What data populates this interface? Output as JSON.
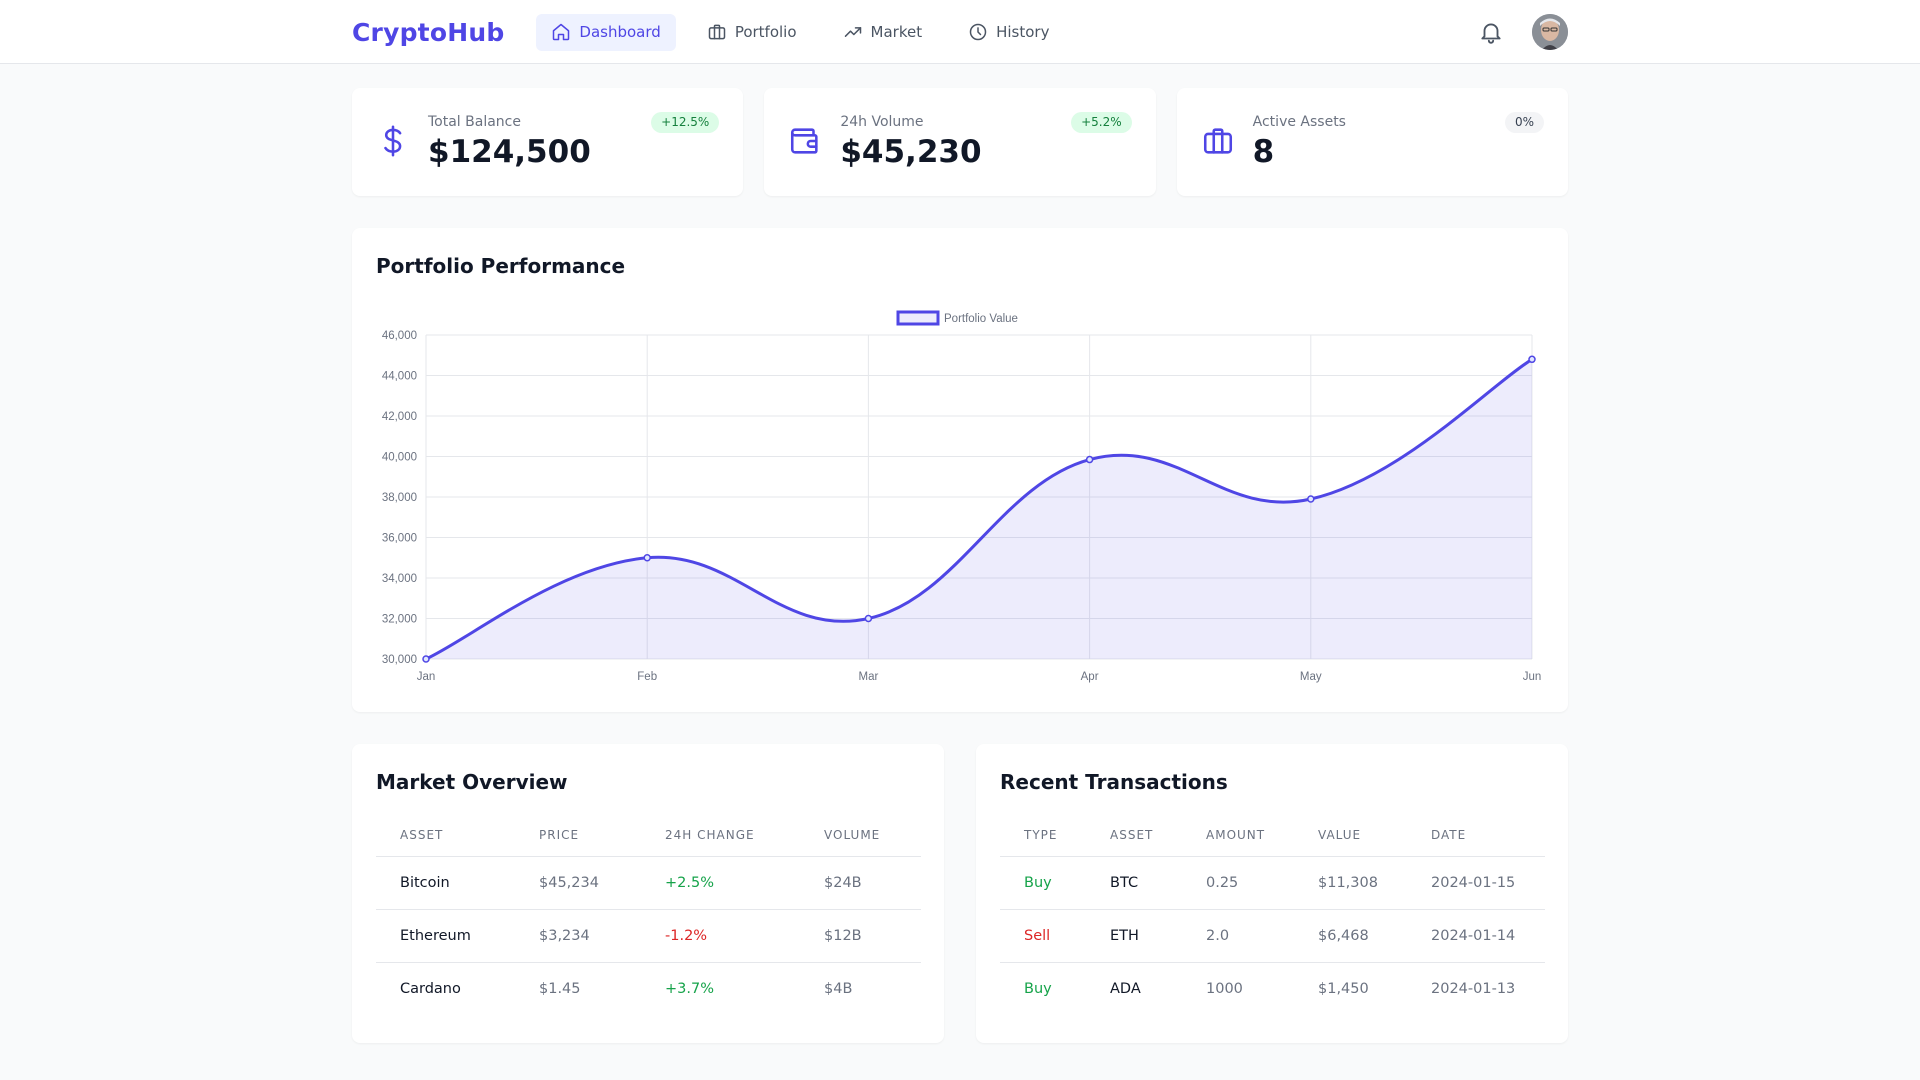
{
  "nav": {
    "brand": "CryptoHub",
    "items": [
      {
        "label": "Dashboard",
        "icon": "home-icon",
        "active": true
      },
      {
        "label": "Portfolio",
        "icon": "briefcase-icon",
        "active": false
      },
      {
        "label": "Market",
        "icon": "trending-up-icon",
        "active": false
      },
      {
        "label": "History",
        "icon": "clock-icon",
        "active": false
      }
    ]
  },
  "stats": [
    {
      "label": "Total Balance",
      "value": "$124,500",
      "change": "+12.5%",
      "icon": "dollar-icon"
    },
    {
      "label": "24h Volume",
      "value": "$45,230",
      "change": "+5.2%",
      "icon": "wallet-icon"
    },
    {
      "label": "Active Assets",
      "value": "8",
      "change": "0%",
      "icon": "briefcase-icon"
    }
  ],
  "colors": {
    "accent": "#4f46e5",
    "accent_fill": "rgba(79,70,229,0.10)",
    "positive": "#16a34a",
    "negative": "#dc2626"
  },
  "performance": {
    "title": "Portfolio Performance"
  },
  "chart_data": {
    "type": "area",
    "categories": [
      "Jan",
      "Feb",
      "Mar",
      "Apr",
      "May",
      "Jun"
    ],
    "series": [
      {
        "name": "Portfolio Value",
        "values": [
          30000,
          35000,
          32000,
          39850,
          37900,
          44800
        ]
      }
    ],
    "ylim": [
      30000,
      46000
    ],
    "yticks": [
      "30,000",
      "32,000",
      "34,000",
      "36,000",
      "38,000",
      "40,000",
      "42,000",
      "44,000",
      "46,000"
    ],
    "ytick_values": [
      30000,
      32000,
      34000,
      36000,
      38000,
      40000,
      42000,
      44000,
      46000
    ],
    "grid": true,
    "legend_position": "top-center"
  },
  "market": {
    "title": "Market Overview",
    "headers": [
      "ASSET",
      "PRICE",
      "24H CHANGE",
      "VOLUME"
    ],
    "rows": [
      {
        "asset": "Bitcoin",
        "price": "$45,234",
        "change": "+2.5%",
        "volume": "$24B"
      },
      {
        "asset": "Ethereum",
        "price": "$3,234",
        "change": "-1.2%",
        "volume": "$12B"
      },
      {
        "asset": "Cardano",
        "price": "$1.45",
        "change": "+3.7%",
        "volume": "$4B"
      }
    ]
  },
  "transactions": {
    "title": "Recent Transactions",
    "headers": [
      "TYPE",
      "ASSET",
      "AMOUNT",
      "VALUE",
      "DATE"
    ],
    "rows": [
      {
        "type": "Buy",
        "asset": "BTC",
        "amount": "0.25",
        "value": "$11,308",
        "date": "2024-01-15"
      },
      {
        "type": "Sell",
        "asset": "ETH",
        "amount": "2.0",
        "value": "$6,468",
        "date": "2024-01-14"
      },
      {
        "type": "Buy",
        "asset": "ADA",
        "amount": "1000",
        "value": "$1,450",
        "date": "2024-01-13"
      }
    ]
  }
}
